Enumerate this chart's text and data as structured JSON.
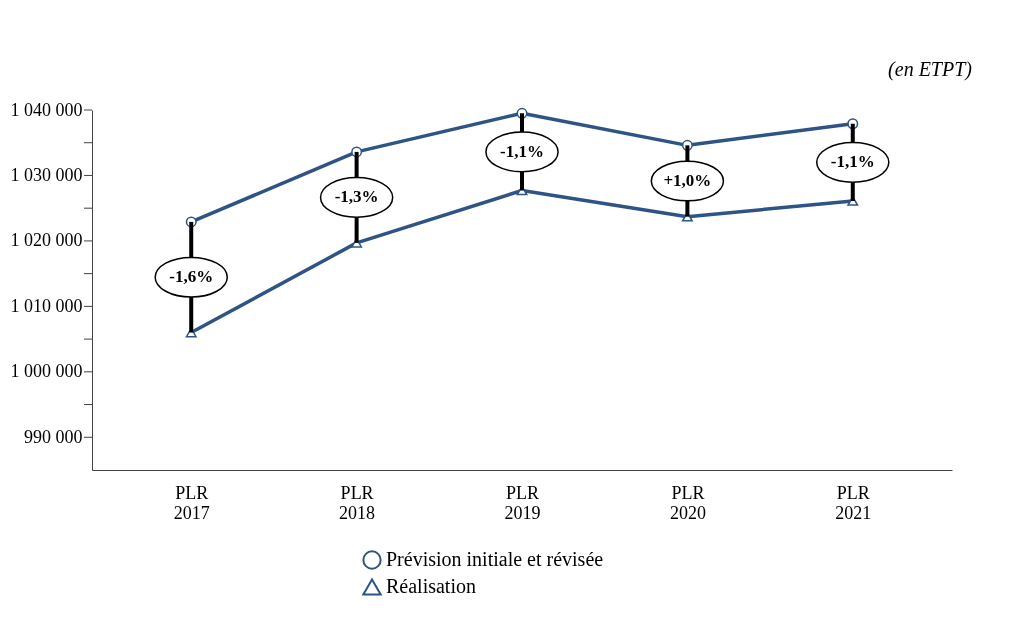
{
  "chart_data": {
    "type": "line",
    "categories": [
      "PLR 2017",
      "PLR 2018",
      "PLR 2019",
      "PLR 2020",
      "PLR 2021"
    ],
    "series": [
      {
        "name": "Prévision initiale et révisée",
        "color": "#2e5485",
        "marker": "circle",
        "values": [
          1022900,
          1033600,
          1039500,
          1034600,
          1037900
        ]
      },
      {
        "name": "Réalisation",
        "color": "#2e5485",
        "marker": "triangle",
        "values": [
          1006000,
          1019700,
          1027700,
          1023700,
          1026100
        ],
        "errors": [
          [
            1006000,
            1022900
          ],
          [
            1019700,
            1033600
          ],
          [
            1027700,
            1039500
          ],
          [
            1023700,
            1034600
          ],
          [
            1026100,
            1037900
          ]
        ]
      }
    ],
    "ylim": [
      985000,
      1040000
    ],
    "yticks": [
      {
        "value": 990000,
        "label": "990 000"
      },
      {
        "value": 995000,
        "label": null
      },
      {
        "value": 1000000,
        "label": "1 000 000"
      },
      {
        "value": 1005000,
        "label": null
      },
      {
        "value": 1010000,
        "label": "1 010 000"
      },
      {
        "value": 1015000,
        "label": null
      },
      {
        "value": 1020000,
        "label": "1 020 000"
      },
      {
        "value": 1025000,
        "label": null
      },
      {
        "value": 1030000,
        "label": "1 030 000"
      },
      {
        "value": 1035000,
        "label": null
      },
      {
        "value": 1040000,
        "label": "1 040 000"
      }
    ],
    "annotations": [
      "(en ETPT)",
      "-1,6%",
      "-1,3%",
      "-1,1%",
      "+1,0%",
      "-1,1%"
    ],
    "grid": false,
    "legend": "bottom",
    "line_style": "solid"
  }
}
